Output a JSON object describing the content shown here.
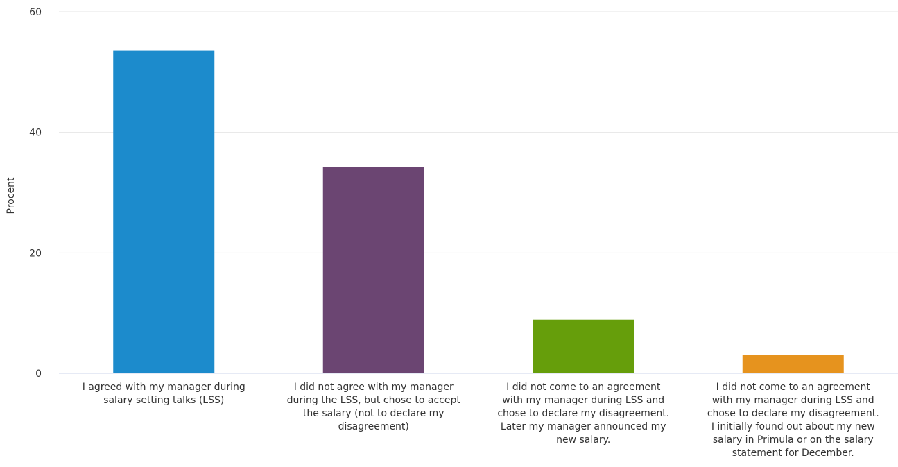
{
  "chart_data": {
    "type": "bar",
    "title": "",
    "xlabel": "",
    "ylabel": "Procent",
    "ylim": [
      0,
      60
    ],
    "yticks": [
      0,
      20,
      40,
      60
    ],
    "grid": true,
    "legend": "none",
    "categories": [
      "I agreed with my manager during salary setting talks (LSS)",
      "I did not agree with my manager during the LSS, but chose to accept the salary (not to declare my disagreement)",
      "I did not come to an agreement with my manager during LSS and chose to declare my disagreement. Later my manager announced my new salary.",
      "I did not come to an agreement with my manager during LSS and chose to declare my disagreement. I initially found out about my new salary in Primula or on the salary statement for December."
    ],
    "category_lines": [
      [
        "I agreed with my manager during",
        "salary setting talks (LSS)"
      ],
      [
        "I did not agree with my manager",
        "during the LSS, but chose to accept",
        "the salary (not to declare my",
        "disagreement)"
      ],
      [
        "I did not come to an agreement",
        "with my manager during LSS and",
        "chose to declare my disagreement.",
        "Later my manager announced my",
        "new salary."
      ],
      [
        "I did not come to an agreement",
        "with my manager during LSS and",
        "chose to declare my disagreement.",
        "I initially found out about my new",
        "salary in Primula or on the salary",
        "statement for December."
      ]
    ],
    "values": [
      53.6,
      34.3,
      8.9,
      3.0
    ],
    "colors": [
      "#1c8bcc",
      "#6b4572",
      "#669e0b",
      "#e6931e"
    ]
  }
}
